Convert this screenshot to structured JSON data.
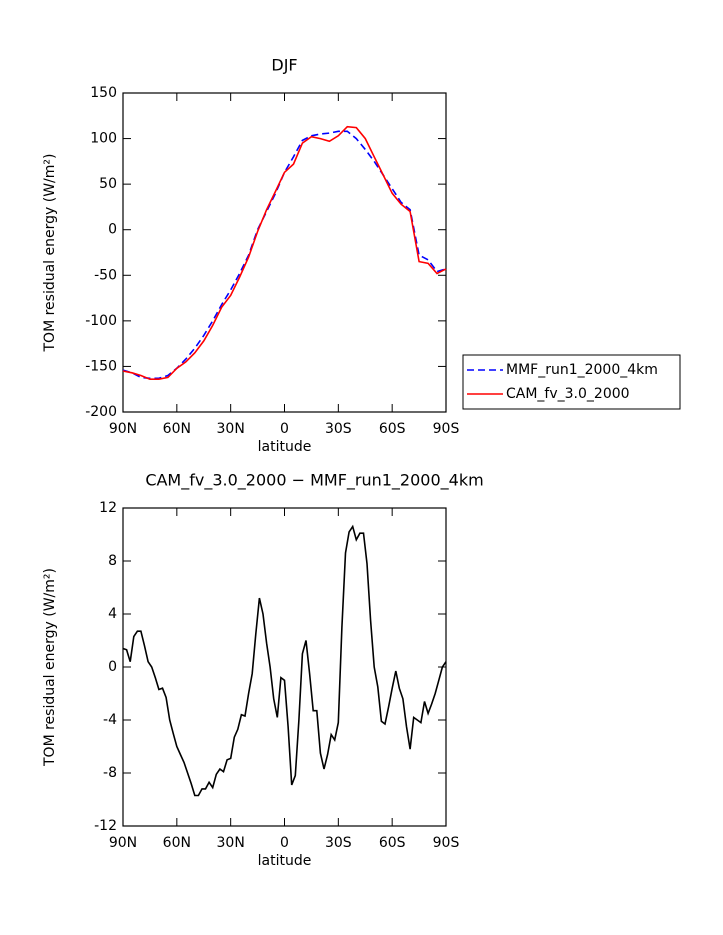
{
  "chart_data": [
    {
      "type": "line",
      "title": "DJF",
      "xlabel": "latitude",
      "ylabel": "TOM residual energy (W/m²)",
      "x": [
        90,
        85,
        80,
        75,
        70,
        65,
        60,
        55,
        50,
        45,
        40,
        35,
        30,
        25,
        20,
        15,
        10,
        5,
        0,
        -5,
        -10,
        -15,
        -20,
        -25,
        -30,
        -35,
        -40,
        -45,
        -50,
        -55,
        -60,
        -65,
        -70,
        -75,
        -80,
        -85,
        -90
      ],
      "series": [
        {
          "name": "MMF_run1_2000_4km",
          "color": "#0000ff",
          "line_style": "dashed",
          "values": [
            -154,
            -157,
            -162,
            -163,
            -163,
            -160,
            -152,
            -142,
            -130,
            -116,
            -100,
            -82,
            -66,
            -48,
            -28,
            0,
            20,
            40,
            63,
            80,
            98,
            103,
            105,
            106,
            108,
            108,
            100,
            88,
            75,
            60,
            45,
            30,
            22,
            -28,
            -33,
            -46,
            -43
          ]
        },
        {
          "name": "CAM_fv_3.0_2000",
          "color": "#ff0000",
          "line_style": "solid",
          "values": [
            -155,
            -157,
            -160,
            -164,
            -164,
            -162,
            -152,
            -145,
            -135,
            -122,
            -105,
            -85,
            -72,
            -52,
            -30,
            -2,
            22,
            42,
            63,
            72,
            95,
            102,
            100,
            97,
            103,
            113,
            112,
            100,
            80,
            60,
            40,
            28,
            20,
            -35,
            -37,
            -48,
            -43
          ]
        }
      ],
      "xlim": [
        90,
        -90
      ],
      "xticks": [
        {
          "value": 90,
          "label": "90N"
        },
        {
          "value": 60,
          "label": "60N"
        },
        {
          "value": 30,
          "label": "30N"
        },
        0,
        {
          "value": -30,
          "label": "30S"
        },
        {
          "value": -60,
          "label": "60S"
        },
        {
          "value": -90,
          "label": "90S"
        }
      ],
      "ylim": [
        -200,
        150
      ],
      "yticks": [
        -200,
        -150,
        -100,
        -50,
        0,
        50,
        100,
        150
      ],
      "legend": "right"
    },
    {
      "type": "line",
      "title": "CAM_fv_3.0_2000 − MMF_run1_2000_4km",
      "xlabel": "latitude",
      "ylabel": "TOM residual energy (W/m²)",
      "x": [
        90,
        88,
        86,
        84,
        82,
        80,
        78,
        76,
        74,
        72,
        70,
        68,
        66,
        64,
        62,
        60,
        58,
        56,
        54,
        52,
        50,
        48,
        46,
        44,
        42,
        40,
        38,
        36,
        34,
        32,
        30,
        28,
        26,
        24,
        22,
        20,
        18,
        16,
        14,
        12,
        10,
        8,
        6,
        4,
        2,
        0,
        -2,
        -4,
        -6,
        -8,
        -10,
        -12,
        -14,
        -16,
        -18,
        -20,
        -22,
        -24,
        -26,
        -28,
        -30,
        -32,
        -34,
        -36,
        -38,
        -40,
        -42,
        -44,
        -46,
        -48,
        -50,
        -52,
        -54,
        -56,
        -58,
        -60,
        -62,
        -64,
        -66,
        -68,
        -70,
        -72,
        -74,
        -76,
        -78,
        -80,
        -82,
        -84,
        -86,
        -88,
        -90
      ],
      "values": [
        1.4,
        1.3,
        0.4,
        2.3,
        2.7,
        2.7,
        1.6,
        0.4,
        0,
        -0.8,
        -1.7,
        -1.6,
        -2.3,
        -4,
        -5,
        -6,
        -6.6,
        -7.2,
        -8,
        -8.8,
        -9.7,
        -9.7,
        -9.2,
        -9.2,
        -8.7,
        -9.1,
        -8.1,
        -7.7,
        -7.9,
        -7,
        -6.9,
        -5.3,
        -4.7,
        -3.6,
        -3.7,
        -2,
        -0.5,
        2.5,
        5.2,
        4,
        1.8,
        0,
        -2.4,
        -3.8,
        -0.8,
        -1,
        -4.5,
        -8.9,
        -8.2,
        -4,
        1,
        2,
        -0.5,
        -3.3,
        -3.3,
        -6.5,
        -7.7,
        -6.6,
        -5.1,
        -5.5,
        -4.2,
        3,
        8.6,
        10.2,
        10.6,
        9.6,
        10.1,
        10.1,
        7.8,
        3.5,
        0,
        -1.5,
        -4.1,
        -4.3,
        -3,
        -1.6,
        -0.3,
        -1.6,
        -2.4,
        -4.5,
        -6.2,
        -3.8,
        -4,
        -4.2,
        -2.6,
        -3.5,
        -2.8,
        -2,
        -1,
        0,
        0.4
      ],
      "color": "#000000",
      "xlim": [
        90,
        -90
      ],
      "xticks": [
        {
          "value": 90,
          "label": "90N"
        },
        {
          "value": 60,
          "label": "60N"
        },
        {
          "value": 30,
          "label": "30N"
        },
        0,
        {
          "value": -30,
          "label": "30S"
        },
        {
          "value": -60,
          "label": "60S"
        },
        {
          "value": -90,
          "label": "90S"
        }
      ],
      "ylim": [
        -12,
        12
      ],
      "yticks": [
        -12,
        -8,
        -4,
        0,
        4,
        8,
        12
      ]
    }
  ]
}
